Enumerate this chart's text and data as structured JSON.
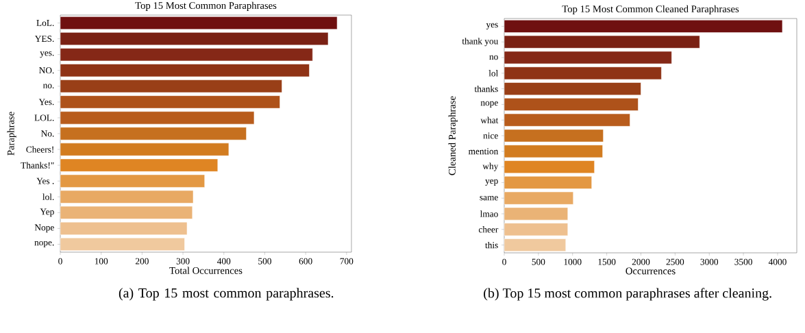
{
  "chart_data": [
    {
      "type": "bar",
      "orientation": "horizontal",
      "title": "Top 15 Most Common Paraphrases",
      "xlabel": "Total Occurrences",
      "ylabel": "Paraphrase",
      "categories": [
        "LoL.",
        "YES.",
        "yes.",
        "NO.",
        "no.",
        "Yes.",
        "LOL.",
        "No.",
        "Cheers!",
        "Thanks!\"",
        "Yes .",
        "lol.",
        "Yep",
        "Nope",
        "nope."
      ],
      "values": [
        677,
        655,
        617,
        609,
        542,
        537,
        474,
        455,
        412,
        385,
        353,
        325,
        323,
        310,
        304
      ],
      "colors": [
        "#6f1010",
        "#7a2114",
        "#852817",
        "#8f3316",
        "#993f17",
        "#ae521a",
        "#b85c1c",
        "#c6701f",
        "#d27c20",
        "#df8523",
        "#e39843",
        "#e8a963",
        "#eab376",
        "#eec08f",
        "#f0c99e"
      ],
      "xlim": [
        0,
        712
      ],
      "xticks": [
        0,
        100,
        200,
        300,
        400,
        500,
        600,
        700
      ],
      "grid": false,
      "annotations": [
        "(a) Top 15 most common paraphrases."
      ]
    },
    {
      "type": "bar",
      "orientation": "horizontal",
      "title": "Top 15 Most Common Cleaned Paraphrases",
      "xlabel": "Occurrences",
      "ylabel": "Cleaned Paraphrase",
      "categories": [
        "yes",
        "thank you",
        "no",
        "lol",
        "thanks",
        "nope",
        "what",
        "nice",
        "mention",
        "why",
        "yep",
        "same",
        "lmao",
        "cheer",
        "this"
      ],
      "values": [
        4070,
        2860,
        2450,
        2300,
        2000,
        1960,
        1840,
        1450,
        1440,
        1320,
        1280,
        1010,
        930,
        930,
        900
      ],
      "colors": [
        "#6f1010",
        "#7a2114",
        "#852817",
        "#8f3316",
        "#993f17",
        "#ae521a",
        "#b85c1c",
        "#c6701f",
        "#d27c20",
        "#df8523",
        "#e39843",
        "#e8a963",
        "#eab376",
        "#eec08f",
        "#f0c99e"
      ],
      "xlim": [
        0,
        4281
      ],
      "xticks": [
        0,
        500,
        1000,
        1500,
        2000,
        2500,
        3000,
        3500,
        4000
      ],
      "grid": false,
      "annotations": [
        "(b) Top 15 most common paraphrases after cleaning."
      ]
    }
  ]
}
